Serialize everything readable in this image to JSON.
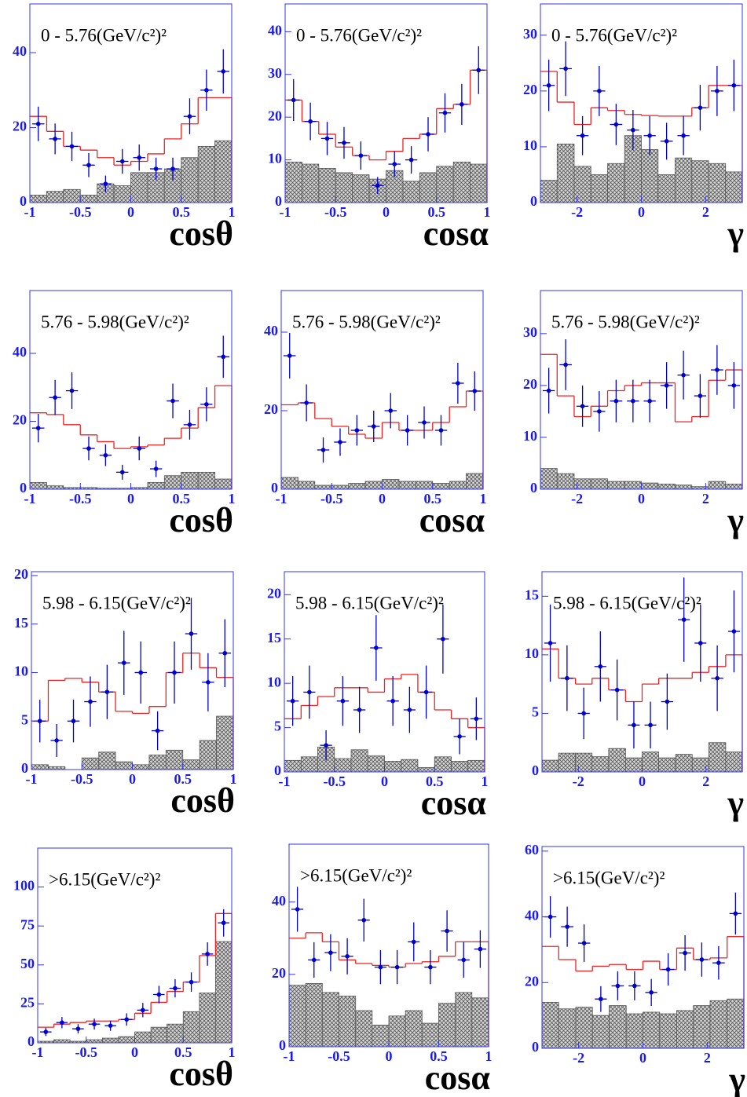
{
  "chart_data": [
    {
      "type": "hist",
      "title": "0 - 5.76(GeV/c²)²",
      "xlabel": "cosθ",
      "bins": [
        -1,
        -0.833,
        -0.667,
        -0.5,
        -0.333,
        -0.167,
        0,
        0.167,
        0.333,
        0.5,
        0.667,
        0.833,
        1
      ],
      "xlim": [
        -1,
        1
      ],
      "xticks": [
        -1,
        -0.5,
        0,
        0.5,
        1
      ],
      "ylim": [
        0,
        53
      ],
      "yticks": [
        0,
        20,
        40
      ],
      "data": {
        "color": "#0000cc",
        "values": [
          21,
          17,
          15,
          10,
          5,
          11,
          12,
          9,
          9,
          23,
          30,
          35
        ],
        "errors": [
          4.6,
          4.1,
          3.9,
          3.2,
          2.2,
          3.3,
          3.5,
          3,
          3,
          4.8,
          5.5,
          5.9
        ]
      },
      "fit": {
        "color": "#ee2222",
        "values": [
          23,
          19,
          15,
          14,
          12,
          10,
          11,
          13,
          17,
          21,
          28,
          28
        ]
      },
      "background": {
        "color": "#555555",
        "values": [
          2,
          3,
          3.5,
          2,
          5,
          4.5,
          8,
          8,
          9,
          12,
          15,
          16.5
        ]
      }
    },
    {
      "type": "hist",
      "title": "0 - 5.76(GeV/c²)²",
      "xlabel": "cosα",
      "bins": [
        -1,
        -0.833,
        -0.667,
        -0.5,
        -0.333,
        -0.167,
        0,
        0.167,
        0.333,
        0.5,
        0.667,
        0.833,
        1
      ],
      "xlim": [
        -1,
        1
      ],
      "xticks": [
        -1,
        -0.5,
        0,
        0.5,
        1
      ],
      "ylim": [
        0,
        46.5
      ],
      "yticks": [
        0,
        10,
        20,
        30,
        40
      ],
      "data": {
        "color": "#0000cc",
        "values": [
          24,
          19,
          15,
          14,
          11,
          4,
          9,
          10,
          16,
          21,
          23,
          31
        ],
        "errors": [
          4.9,
          4.4,
          3.9,
          3.7,
          3.3,
          2,
          3,
          3.2,
          4,
          4.6,
          4.8,
          5.6
        ]
      },
      "fit": {
        "color": "#ee2222",
        "values": [
          24,
          19,
          16,
          13,
          11,
          10,
          12,
          15,
          16,
          22,
          23,
          31
        ]
      },
      "background": {
        "color": "#555555",
        "values": [
          9.5,
          9,
          8,
          7,
          6.5,
          5.5,
          7.5,
          5,
          7,
          8.5,
          9.5,
          9
        ]
      }
    },
    {
      "type": "hist",
      "title": "0 - 5.76(GeV/c²)²",
      "xlabel": "γ",
      "bins": [
        -3.14,
        -2.62,
        -2.09,
        -1.57,
        -1.05,
        -0.52,
        0,
        0.52,
        1.05,
        1.57,
        2.09,
        2.62,
        3.14
      ],
      "xlim": [
        -3.14,
        3.14
      ],
      "xticks": [
        -2,
        0,
        2
      ],
      "ylim": [
        0,
        35.6
      ],
      "yticks": [
        0,
        10,
        20,
        30
      ],
      "data": {
        "color": "#0000cc",
        "values": [
          21,
          24,
          12,
          20,
          14,
          13,
          12,
          11,
          12,
          17,
          20,
          21
        ],
        "errors": [
          4.6,
          4.9,
          3.5,
          4.5,
          3.7,
          3.6,
          3.5,
          3.3,
          3.5,
          4.1,
          4.5,
          4.6
        ]
      },
      "fit": {
        "color": "#ee2222",
        "values": [
          23.5,
          18,
          14,
          17,
          16.5,
          15.8,
          15.6,
          15.5,
          15.5,
          17,
          21,
          21
        ]
      },
      "background": {
        "color": "#555555",
        "values": [
          4,
          10.5,
          6.5,
          5,
          7,
          12,
          9.5,
          5,
          8,
          7.5,
          7,
          5.5
        ]
      }
    },
    {
      "type": "hist",
      "title": "5.76 - 5.98(GeV/c²)²",
      "xlabel": "cosθ",
      "bins": [
        -1,
        -0.833,
        -0.667,
        -0.5,
        -0.333,
        -0.167,
        0,
        0.167,
        0.333,
        0.5,
        0.667,
        0.833,
        1
      ],
      "xlim": [
        -1,
        1
      ],
      "xticks": [
        -1,
        -0.5,
        0,
        0.5,
        1
      ],
      "ylim": [
        0,
        58.5
      ],
      "yticks": [
        0,
        20,
        40
      ],
      "data": {
        "color": "#0000cc",
        "values": [
          18,
          27,
          29,
          12,
          10,
          5,
          12,
          6,
          26,
          19,
          25,
          39
        ],
        "errors": [
          4.2,
          5.2,
          5.4,
          3.5,
          3.2,
          2.2,
          3.5,
          2.4,
          5.1,
          4.4,
          5,
          6.2
        ]
      },
      "fit": {
        "color": "#ee2222",
        "values": [
          22.5,
          22,
          19,
          16,
          14,
          12,
          12.5,
          13,
          15,
          18,
          24,
          30.5
        ]
      },
      "background": {
        "color": "#555555",
        "values": [
          2,
          1,
          0.5,
          0.5,
          0.3,
          0.3,
          0.5,
          2,
          4,
          5,
          5,
          3
        ]
      }
    },
    {
      "type": "hist",
      "title": "5.76 - 5.98(GeV/c²)²",
      "xlabel": "cosα",
      "bins": [
        -1,
        -0.833,
        -0.667,
        -0.5,
        -0.333,
        -0.167,
        0,
        0.167,
        0.333,
        0.5,
        0.667,
        0.833,
        1
      ],
      "xlim": [
        -1,
        1
      ],
      "xticks": [
        -1,
        -0.5,
        0,
        0.5,
        1
      ],
      "ylim": [
        0,
        50.6
      ],
      "yticks": [
        0,
        20,
        40
      ],
      "data": {
        "color": "#0000cc",
        "values": [
          34,
          22,
          10,
          12,
          15,
          16,
          20,
          15,
          17,
          15,
          27,
          25
        ],
        "errors": [
          5.8,
          4.7,
          3.2,
          3.5,
          3.9,
          4,
          4.5,
          3.9,
          4.1,
          3.9,
          5.2,
          5
        ]
      },
      "fit": {
        "color": "#ee2222",
        "values": [
          21.5,
          22,
          18,
          16,
          14,
          13,
          17,
          15,
          15,
          17,
          21,
          25
        ]
      },
      "background": {
        "color": "#555555",
        "values": [
          3,
          2,
          1,
          1,
          1.5,
          2,
          2.5,
          2,
          2,
          1.5,
          2,
          4
        ]
      }
    },
    {
      "type": "hist",
      "title": "5.76 - 5.98(GeV/c²)²",
      "xlabel": "γ",
      "bins": [
        -3.14,
        -2.62,
        -2.09,
        -1.57,
        -1.05,
        -0.52,
        0,
        0.52,
        1.05,
        1.57,
        2.09,
        2.62,
        3.14
      ],
      "xlim": [
        -3.14,
        3.14
      ],
      "xticks": [
        -2,
        0,
        2
      ],
      "ylim": [
        0,
        38.3
      ],
      "yticks": [
        0,
        10,
        20,
        30
      ],
      "data": {
        "color": "#0000cc",
        "values": [
          19,
          24,
          16,
          15,
          17,
          17,
          17,
          20,
          22,
          18,
          23,
          20
        ],
        "errors": [
          4.4,
          4.9,
          4,
          3.9,
          4.1,
          4.1,
          4.1,
          4.5,
          4.7,
          4.2,
          4.8,
          4.5
        ]
      },
      "fit": {
        "color": "#ee2222",
        "values": [
          26,
          18,
          14,
          16,
          19,
          20,
          20.5,
          20.5,
          13,
          14,
          21,
          23
        ]
      },
      "background": {
        "color": "#555555",
        "values": [
          4,
          3,
          2,
          2,
          1.5,
          1.5,
          1.2,
          1,
          0.8,
          0.5,
          1.5,
          1
        ]
      }
    },
    {
      "type": "hist",
      "title": "5.98 - 6.15(GeV/c²)²",
      "xlabel": "cosθ",
      "bins": [
        -1,
        -0.833,
        -0.667,
        -0.5,
        -0.333,
        -0.167,
        0,
        0.167,
        0.333,
        0.5,
        0.667,
        0.833,
        1
      ],
      "xlim": [
        -1,
        1
      ],
      "xticks": [
        -1,
        -0.5,
        0,
        0.5,
        1
      ],
      "ylim": [
        0,
        20.4
      ],
      "yticks": [
        0,
        5,
        10,
        15,
        20
      ],
      "data": {
        "color": "#0000cc",
        "values": [
          5,
          3,
          5,
          7,
          8,
          11,
          10,
          4,
          10,
          14,
          9,
          12
        ],
        "errors": [
          2.2,
          1.7,
          2.2,
          2.6,
          2.8,
          3.3,
          3.2,
          2,
          3.2,
          3.7,
          3,
          3.5
        ]
      },
      "fit": {
        "color": "#ee2222",
        "values": [
          5,
          9.2,
          9.4,
          9,
          8,
          6,
          5.8,
          6.5,
          10,
          12,
          10.5,
          9.5
        ]
      },
      "background": {
        "color": "#555555",
        "values": [
          0.5,
          0.3,
          0,
          1.2,
          1.8,
          0.8,
          0.5,
          1.5,
          2,
          1,
          3,
          5.5
        ]
      }
    },
    {
      "type": "hist",
      "title": "5.98 - 6.15(GeV/c²)²",
      "xlabel": "cosα",
      "bins": [
        -1,
        -0.833,
        -0.667,
        -0.5,
        -0.333,
        -0.167,
        0,
        0.167,
        0.333,
        0.5,
        0.667,
        0.833,
        1
      ],
      "xlim": [
        -1,
        1
      ],
      "xticks": [
        -1,
        -0.5,
        0,
        0.5,
        1
      ],
      "ylim": [
        0,
        22.6
      ],
      "yticks": [
        0,
        5,
        10,
        15,
        20
      ],
      "data": {
        "color": "#0000cc",
        "values": [
          8,
          9,
          3,
          8,
          7,
          14,
          8,
          7,
          9,
          15,
          4,
          6
        ],
        "errors": [
          2.8,
          3,
          1.7,
          2.8,
          2.6,
          3.7,
          2.8,
          2.6,
          3,
          3.9,
          2,
          2.4
        ]
      },
      "fit": {
        "color": "#ee2222",
        "values": [
          6,
          7.5,
          8.5,
          9.5,
          9.5,
          9,
          10.5,
          11,
          9,
          7,
          6,
          5
        ]
      },
      "background": {
        "color": "#555555",
        "values": [
          1.3,
          1.7,
          2.8,
          1.5,
          2.5,
          1.8,
          1.2,
          1.4,
          0.5,
          1.7,
          1.2,
          1.3
        ]
      }
    },
    {
      "type": "hist",
      "title": "5.98 - 6.15(GeV/c²)²",
      "xlabel": "γ",
      "bins": [
        -3.14,
        -2.62,
        -2.09,
        -1.57,
        -1.05,
        -0.52,
        0,
        0.52,
        1.05,
        1.57,
        2.09,
        2.62,
        3.14
      ],
      "xlim": [
        -3.14,
        3.14
      ],
      "xticks": [
        -2,
        0,
        2
      ],
      "ylim": [
        0,
        17.1
      ],
      "yticks": [
        0,
        5,
        10,
        15
      ],
      "data": {
        "color": "#0000cc",
        "values": [
          11,
          8,
          5,
          9,
          7,
          4,
          4,
          6,
          13,
          11,
          8,
          12
        ],
        "errors": [
          3.3,
          2.8,
          2.2,
          3,
          2.6,
          2,
          2,
          2.4,
          3.6,
          3.3,
          2.8,
          3.5
        ]
      },
      "fit": {
        "color": "#ee2222",
        "values": [
          10.5,
          8,
          7.5,
          8,
          7,
          6,
          7.5,
          8,
          8,
          8.5,
          9,
          10
        ]
      },
      "background": {
        "color": "#555555",
        "values": [
          1,
          1.6,
          1.6,
          1.3,
          2,
          1.2,
          1.7,
          1.2,
          1.5,
          1.2,
          2.5,
          1.7
        ]
      }
    },
    {
      "type": "hist",
      "title": ">6.15(GeV/c²)²",
      "xlabel": "cosθ",
      "bins": [
        -1,
        -0.833,
        -0.667,
        -0.5,
        -0.333,
        -0.167,
        0,
        0.167,
        0.333,
        0.5,
        0.667,
        0.833,
        1
      ],
      "xlim": [
        -1,
        1
      ],
      "xticks": [
        -1,
        -0.5,
        0,
        0.5,
        1
      ],
      "ylim": [
        0,
        125
      ],
      "yticks": [
        0,
        25,
        50,
        75,
        100
      ],
      "data": {
        "color": "#0000cc",
        "values": [
          7,
          13,
          9,
          12,
          11,
          15,
          21,
          31,
          35,
          39,
          57,
          77
        ],
        "errors": [
          2.6,
          3.6,
          3,
          3.5,
          3.3,
          3.9,
          4.6,
          5.6,
          5.9,
          6.2,
          7.5,
          8.8
        ]
      },
      "fit": {
        "color": "#ee2222",
        "values": [
          10,
          12,
          13,
          14,
          14,
          15,
          19,
          26,
          33,
          39,
          56,
          83
        ]
      },
      "background": {
        "color": "#555555",
        "values": [
          1,
          2,
          1,
          2,
          3,
          4,
          7,
          10,
          12,
          20,
          32,
          65
        ]
      }
    },
    {
      "type": "hist",
      "title": ">6.15(GeV/c²)²",
      "xlabel": "cosα",
      "bins": [
        -1,
        -0.833,
        -0.667,
        -0.5,
        -0.333,
        -0.167,
        0,
        0.167,
        0.333,
        0.5,
        0.667,
        0.833,
        1
      ],
      "xlim": [
        -1,
        1
      ],
      "xticks": [
        -1,
        -0.5,
        0,
        0.5,
        1
      ],
      "ylim": [
        0,
        56
      ],
      "yticks": [
        0,
        20,
        40
      ],
      "data": {
        "color": "#0000cc",
        "values": [
          38,
          24,
          26,
          25,
          35,
          22,
          22,
          29,
          22,
          32,
          24,
          27
        ],
        "errors": [
          6.2,
          4.9,
          5.1,
          5,
          5.9,
          4.7,
          4.7,
          5.4,
          4.7,
          5.7,
          4.9,
          5.2
        ]
      },
      "fit": {
        "color": "#ee2222",
        "values": [
          30,
          31.5,
          29,
          24,
          23,
          22.5,
          22,
          23,
          23.5,
          25,
          29,
          29
        ]
      },
      "background": {
        "color": "#555555",
        "values": [
          17,
          17.5,
          15,
          14,
          10,
          6,
          8.5,
          10,
          6.5,
          12,
          15,
          13.5
        ]
      }
    },
    {
      "type": "hist",
      "title": ">6.15(GeV/c²)²",
      "xlabel": "γ",
      "bins": [
        -3.14,
        -2.62,
        -2.09,
        -1.57,
        -1.05,
        -0.52,
        0,
        0.52,
        1.05,
        1.57,
        2.09,
        2.62,
        3.14
      ],
      "xlim": [
        -3.14,
        3.14
      ],
      "xticks": [
        -2,
        0,
        2
      ],
      "ylim": [
        0,
        61.4
      ],
      "yticks": [
        0,
        20,
        40,
        60
      ],
      "data": {
        "color": "#0000cc",
        "values": [
          40,
          37,
          32,
          15,
          19,
          19,
          17,
          24,
          29,
          27,
          26,
          41
        ],
        "errors": [
          6.3,
          6.1,
          5.7,
          3.9,
          4.4,
          4.4,
          4.1,
          4.9,
          5.4,
          5.2,
          5.1,
          6.4
        ]
      },
      "fit": {
        "color": "#ee2222",
        "values": [
          31,
          27,
          23.5,
          25,
          25.5,
          24,
          26.5,
          24,
          30.5,
          27,
          27.5,
          34
        ]
      },
      "background": {
        "color": "#555555",
        "values": [
          14,
          12,
          12.5,
          10,
          13,
          10.5,
          11,
          10.5,
          11.5,
          13,
          14.5,
          15
        ]
      }
    }
  ]
}
